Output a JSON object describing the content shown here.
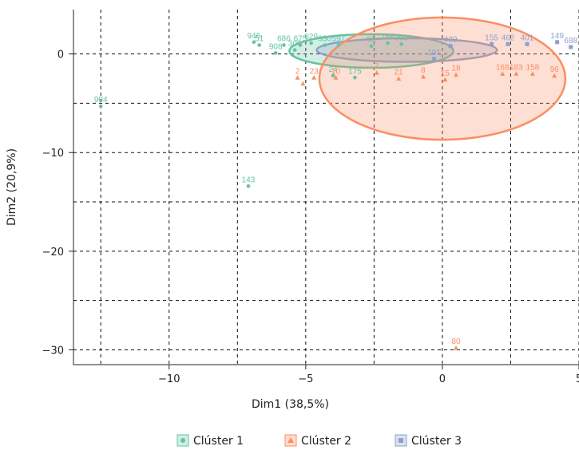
{
  "chart_data": {
    "type": "scatter",
    "title": "",
    "xlabel": "Dim1 (38,5%)",
    "ylabel": "Dim2 (20,9%)",
    "xlim": [
      -13.5,
      5
    ],
    "ylim": [
      -31.5,
      4.5
    ],
    "xticks": [
      -10,
      -5,
      0,
      5
    ],
    "yticks": [
      0,
      -10,
      -20,
      -30
    ],
    "xtick_labels": [
      "−10",
      "−5",
      "0",
      "5"
    ],
    "ytick_labels": [
      "0",
      "−10",
      "−20",
      "−30"
    ],
    "grid": true,
    "grid_style": "dashed",
    "legend_position": "bottom",
    "series": [
      {
        "name": "Clúster 1",
        "color": "#66c2a5",
        "marker": "circle",
        "points": [
          {
            "x": -12.5,
            "y": -5.3,
            "label": "904"
          },
          {
            "x": -7.1,
            "y": -13.4,
            "label": "143"
          },
          {
            "x": -6.9,
            "y": 1.2,
            "label": "946"
          },
          {
            "x": -6.7,
            "y": 0.9,
            "label": "51"
          },
          {
            "x": -6.1,
            "y": 0.1,
            "label": "908"
          },
          {
            "x": -5.8,
            "y": 0.9,
            "label": "686"
          },
          {
            "x": -5.2,
            "y": 0.9,
            "label": "675"
          },
          {
            "x": -5.4,
            "y": 0.4,
            "label": "309"
          },
          {
            "x": -4.8,
            "y": 1.1,
            "label": "629"
          },
          {
            "x": -4.3,
            "y": 0.9,
            "label": "930"
          },
          {
            "x": -3.8,
            "y": 0.9,
            "label": "597"
          },
          {
            "x": -4.0,
            "y": -2.2,
            "label": "24"
          },
          {
            "x": -3.2,
            "y": -2.4,
            "label": "175"
          },
          {
            "x": -2.6,
            "y": 0.8,
            "label": "95"
          },
          {
            "x": -2.0,
            "y": 1.1,
            "label": "166"
          },
          {
            "x": -1.5,
            "y": 1.0,
            "label": "303"
          }
        ]
      },
      {
        "name": "Clúster 2",
        "color": "#fc8d62",
        "marker": "triangle",
        "points": [
          {
            "x": 0.5,
            "y": -29.8,
            "label": "80"
          },
          {
            "x": -5.3,
            "y": -2.4,
            "label": "2"
          },
          {
            "x": -5.1,
            "y": -3.0,
            "label": ""
          },
          {
            "x": -4.7,
            "y": -2.4,
            "label": "23"
          },
          {
            "x": -3.9,
            "y": -2.4,
            "label": "10"
          },
          {
            "x": -2.4,
            "y": -1.9,
            "label": "7"
          },
          {
            "x": -1.6,
            "y": -2.5,
            "label": "21"
          },
          {
            "x": -0.7,
            "y": -2.3,
            "label": "8"
          },
          {
            "x": 0.1,
            "y": -2.6,
            "label": "15"
          },
          {
            "x": 0.5,
            "y": -2.1,
            "label": "18"
          },
          {
            "x": 2.2,
            "y": -2.0,
            "label": "168"
          },
          {
            "x": 2.7,
            "y": -2.0,
            "label": "183"
          },
          {
            "x": 3.3,
            "y": -2.0,
            "label": "158"
          },
          {
            "x": 4.1,
            "y": -2.2,
            "label": "96"
          }
        ]
      },
      {
        "name": "Clúster 3",
        "color": "#8da0cb",
        "marker": "square",
        "points": [
          {
            "x": -0.3,
            "y": -0.5,
            "label": "191"
          },
          {
            "x": 0.3,
            "y": 0.8,
            "label": "429"
          },
          {
            "x": 1.8,
            "y": 1.0,
            "label": "155"
          },
          {
            "x": 2.4,
            "y": 1.0,
            "label": "462"
          },
          {
            "x": 3.1,
            "y": 1.0,
            "label": "401"
          },
          {
            "x": 4.2,
            "y": 1.2,
            "label": "149"
          },
          {
            "x": 4.7,
            "y": 0.7,
            "label": "688"
          }
        ]
      }
    ],
    "ellipses": [
      {
        "series": "Clúster 1",
        "cx": -2.6,
        "cy": 0.3,
        "rx": 3.0,
        "ry": 1.7
      },
      {
        "series": "Clúster 3",
        "cx": -1.3,
        "cy": 0.4,
        "rx": 3.3,
        "ry": 1.2
      },
      {
        "series": "Clúster 2",
        "cx": 0.0,
        "cy": -2.5,
        "rx": 4.5,
        "ry": 6.2
      }
    ]
  },
  "legend": {
    "items": [
      {
        "label": "Clúster 1",
        "color": "#66c2a5",
        "marker": "circle"
      },
      {
        "label": "Clúster 2",
        "color": "#fc8d62",
        "marker": "triangle"
      },
      {
        "label": "Clúster 3",
        "color": "#8da0cb",
        "marker": "square"
      }
    ]
  }
}
